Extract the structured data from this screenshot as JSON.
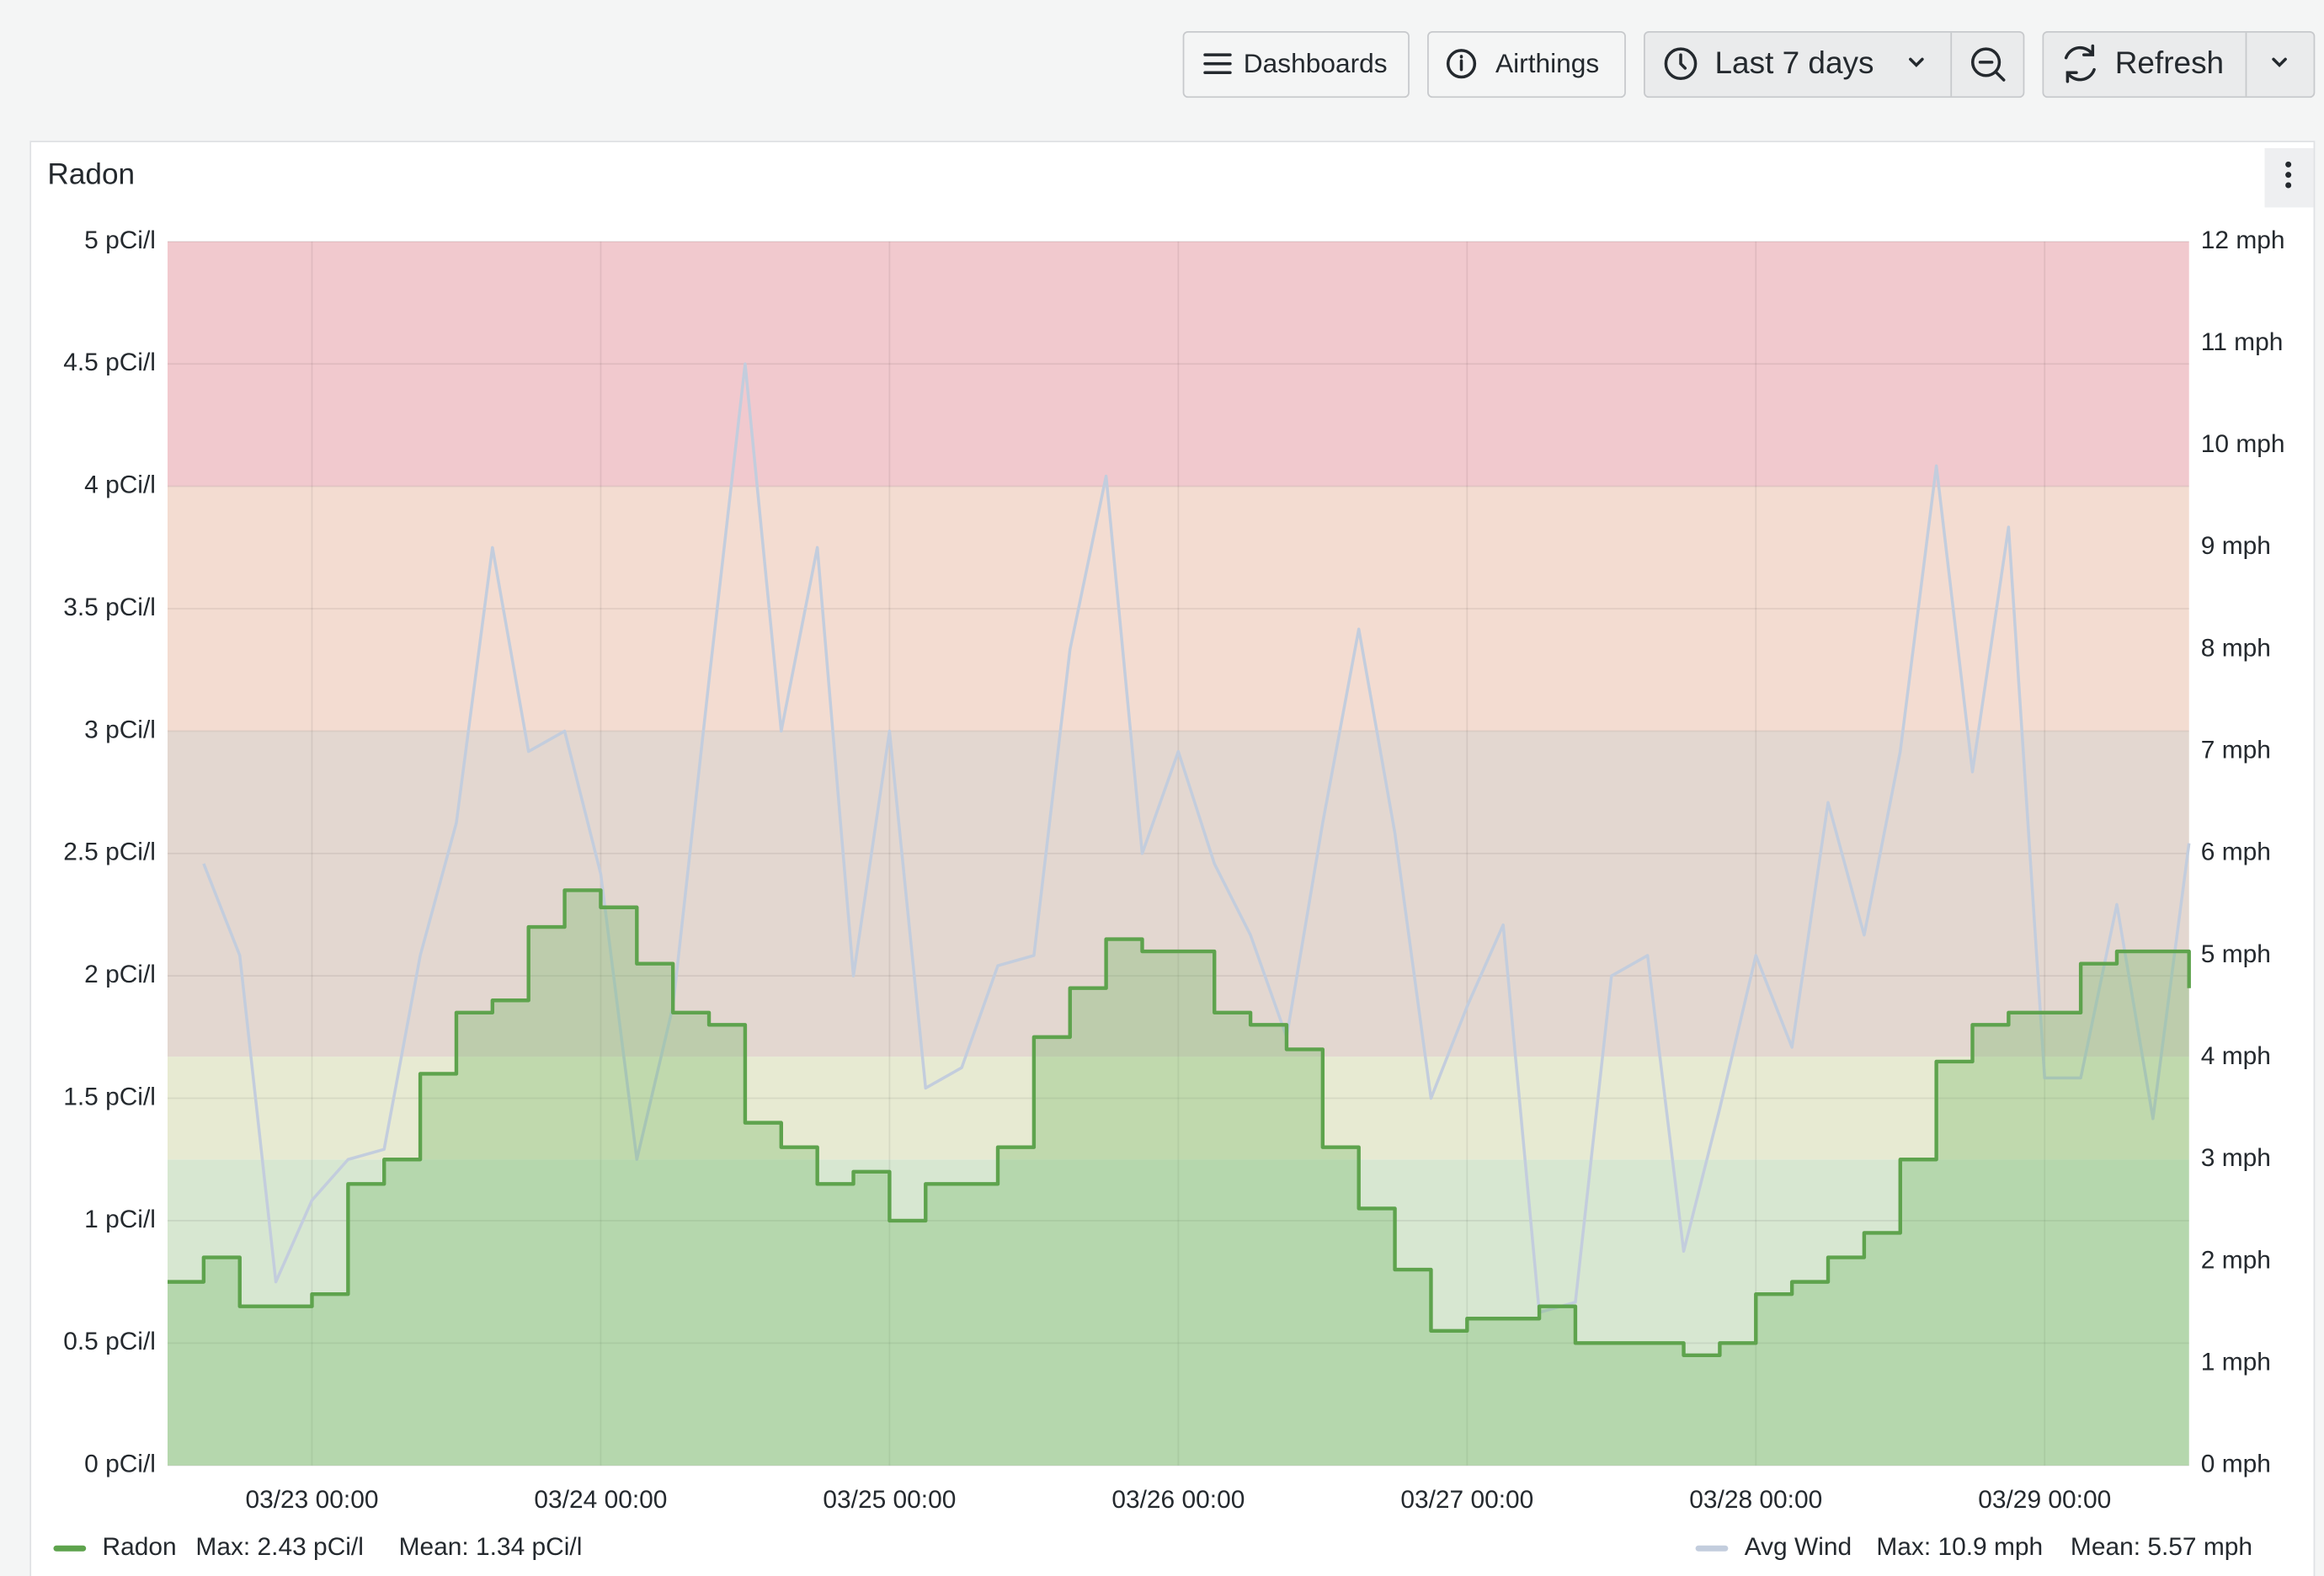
{
  "toolbar": {
    "dashboards": "Dashboards",
    "folder": "Airthings",
    "time_range": "Last 7 days",
    "refresh": "Refresh"
  },
  "chart_data": {
    "type": "line",
    "title": "Radon",
    "xlim": [
      "03/22 12:00",
      "03/29 12:00"
    ],
    "xticks": [
      "03/23 00:00",
      "03/24 00:00",
      "03/25 00:00",
      "03/26 00:00",
      "03/27 00:00",
      "03/28 00:00",
      "03/29 00:00"
    ],
    "x": [
      "03/22 12:00",
      "03/22 15:00",
      "03/22 18:00",
      "03/22 21:00",
      "03/23 00:00",
      "03/23 03:00",
      "03/23 06:00",
      "03/23 09:00",
      "03/23 12:00",
      "03/23 15:00",
      "03/23 18:00",
      "03/23 21:00",
      "03/24 00:00",
      "03/24 03:00",
      "03/24 06:00",
      "03/24 09:00",
      "03/24 12:00",
      "03/24 15:00",
      "03/24 18:00",
      "03/24 21:00",
      "03/25 00:00",
      "03/25 03:00",
      "03/25 06:00",
      "03/25 09:00",
      "03/25 12:00",
      "03/25 15:00",
      "03/25 18:00",
      "03/25 21:00",
      "03/26 00:00",
      "03/26 03:00",
      "03/26 06:00",
      "03/26 09:00",
      "03/26 12:00",
      "03/26 15:00",
      "03/26 18:00",
      "03/26 21:00",
      "03/27 00:00",
      "03/27 03:00",
      "03/27 06:00",
      "03/27 09:00",
      "03/27 12:00",
      "03/27 15:00",
      "03/27 18:00",
      "03/27 21:00",
      "03/28 00:00",
      "03/28 03:00",
      "03/28 06:00",
      "03/28 09:00",
      "03/28 12:00",
      "03/28 15:00",
      "03/28 18:00",
      "03/28 21:00",
      "03/29 00:00",
      "03/29 03:00",
      "03/29 06:00",
      "03/29 09:00",
      "03/29 12:00"
    ],
    "ylim": [
      0,
      5
    ],
    "yticks": [
      {
        "value": 0,
        "label": "0 pCi/l"
      },
      {
        "value": 0.5,
        "label": "0.5 pCi/l"
      },
      {
        "value": 1,
        "label": "1 pCi/l"
      },
      {
        "value": 1.5,
        "label": "1.5 pCi/l"
      },
      {
        "value": 2,
        "label": "2 pCi/l"
      },
      {
        "value": 2.5,
        "label": "2.5 pCi/l"
      },
      {
        "value": 3,
        "label": "3 pCi/l"
      },
      {
        "value": 3.5,
        "label": "3.5 pCi/l"
      },
      {
        "value": 4,
        "label": "4 pCi/l"
      },
      {
        "value": 4.5,
        "label": "4.5 pCi/l"
      },
      {
        "value": 5,
        "label": "5 pCi/l"
      }
    ],
    "y2lim": [
      0,
      12
    ],
    "y2ticks": [
      {
        "value": 0,
        "label": "0 mph"
      },
      {
        "value": 1,
        "label": "1 mph"
      },
      {
        "value": 2,
        "label": "2 mph"
      },
      {
        "value": 3,
        "label": "3 mph"
      },
      {
        "value": 4,
        "label": "4 mph"
      },
      {
        "value": 5,
        "label": "5 mph"
      },
      {
        "value": 6,
        "label": "6 mph"
      },
      {
        "value": 7,
        "label": "7 mph"
      },
      {
        "value": 8,
        "label": "8 mph"
      },
      {
        "value": 9,
        "label": "9 mph"
      },
      {
        "value": 10,
        "label": "10 mph"
      },
      {
        "value": 11,
        "label": "11 mph"
      },
      {
        "value": 12,
        "label": "12 mph"
      }
    ],
    "grid": true,
    "thresholds": [
      {
        "from": 0,
        "to": 1.25,
        "color": "#d7e7d1"
      },
      {
        "from": 1.25,
        "to": 1.67,
        "color": "#e7ead2"
      },
      {
        "from": 1.67,
        "to": 3,
        "color": "#e3d7d0"
      },
      {
        "from": 3,
        "to": 4,
        "color": "#f3dcd1"
      },
      {
        "from": 4,
        "to": 5,
        "color": "#f1c9ce"
      }
    ],
    "series": [
      {
        "name": "Radon",
        "color": "#5ea34d",
        "step": true,
        "fill": "rgba(110,180,95,0.32)",
        "stats": [
          "Max: 2.43 pCi/l",
          "Mean: 1.34 pCi/l"
        ],
        "values": [
          0.75,
          0.85,
          0.65,
          0.65,
          0.7,
          1.15,
          1.25,
          1.6,
          1.85,
          1.9,
          2.2,
          2.35,
          2.28,
          2.05,
          1.85,
          1.8,
          1.4,
          1.3,
          1.15,
          1.2,
          1.0,
          1.15,
          1.15,
          1.3,
          1.75,
          1.95,
          2.15,
          2.1,
          2.1,
          1.85,
          1.8,
          1.7,
          1.3,
          1.05,
          0.8,
          0.55,
          0.6,
          0.6,
          0.65,
          0.5,
          0.5,
          0.5,
          0.45,
          0.5,
          0.7,
          0.75,
          0.85,
          0.95,
          1.25,
          1.65,
          1.8,
          1.85,
          1.85,
          2.05,
          2.1,
          2.1,
          1.95
        ]
      },
      {
        "name": "Avg Wind",
        "color": "#c3cddd",
        "axis": "y2",
        "step": false,
        "stats": [
          "Max: 10.9 mph",
          "Mean: 5.57 mph"
        ],
        "values": [
          null,
          5.9,
          5.0,
          1.8,
          2.6,
          3.0,
          3.1,
          5.0,
          6.3,
          9.0,
          7.0,
          7.2,
          5.8,
          3.0,
          4.5,
          7.7,
          10.8,
          7.2,
          9.0,
          4.8,
          7.2,
          3.7,
          3.9,
          4.9,
          5.0,
          8.0,
          9.7,
          6.0,
          7.0,
          5.9,
          5.2,
          4.2,
          6.3,
          8.2,
          6.2,
          3.6,
          4.5,
          5.3,
          1.5,
          1.6,
          4.8,
          5.0,
          2.1,
          3.5,
          5.0,
          4.1,
          6.5,
          5.2,
          7.0,
          9.8,
          6.8,
          9.2,
          3.8,
          3.8,
          5.5,
          3.4,
          6.1
        ]
      }
    ]
  }
}
